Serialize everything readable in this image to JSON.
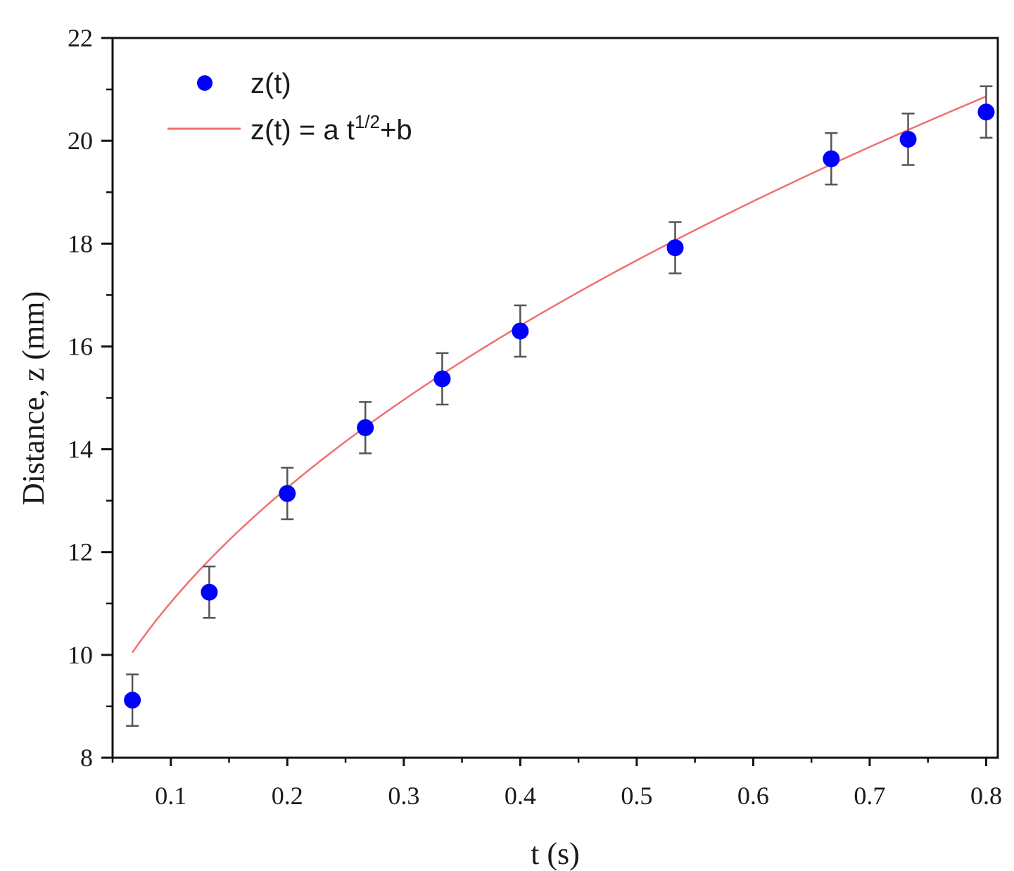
{
  "chart_data": {
    "type": "scatter",
    "xlabel": "t (s)",
    "ylabel": "Distance, z (mm)",
    "xlim": [
      0.05,
      0.81
    ],
    "ylim": [
      8,
      22
    ],
    "x_ticks": [
      0.1,
      0.2,
      0.3,
      0.4,
      0.5,
      0.6,
      0.7,
      0.8
    ],
    "x_tick_labels": [
      "0.1",
      "0.2",
      "0.3",
      "0.4",
      "0.5",
      "0.6",
      "0.7",
      "0.8"
    ],
    "y_ticks": [
      8,
      10,
      12,
      14,
      16,
      18,
      20,
      22
    ],
    "y_tick_labels": [
      "8",
      "10",
      "12",
      "14",
      "16",
      "18",
      "20",
      "22"
    ],
    "grid": false,
    "legend_position": "top-left",
    "series": [
      {
        "name": "z(t)",
        "kind": "scatter",
        "color": "#0000ff",
        "x": [
          0.067,
          0.133,
          0.2,
          0.267,
          0.333,
          0.4,
          0.533,
          0.667,
          0.733,
          0.8
        ],
        "y": [
          9.12,
          11.22,
          13.14,
          14.42,
          15.37,
          16.3,
          17.92,
          19.65,
          20.03,
          20.56
        ],
        "error": [
          0.5,
          0.5,
          0.5,
          0.5,
          0.5,
          0.5,
          0.5,
          0.5,
          0.5,
          0.5
        ]
      },
      {
        "name_parts": {
          "main": "z(t) = a t",
          "sup": "1/2",
          "tail": "+b"
        },
        "kind": "line",
        "color": "#f07070",
        "x_range": [
          0.067,
          0.8
        ],
        "a": 17.02,
        "b": 5.64
      }
    ]
  }
}
